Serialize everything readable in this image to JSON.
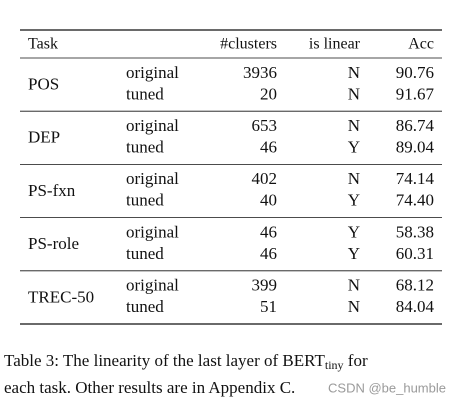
{
  "table": {
    "header": [
      "Task",
      "#clusters",
      "is linear",
      "Acc"
    ],
    "groups": [
      {
        "task": "POS",
        "rows": [
          [
            "original",
            "3936",
            "N",
            "90.76"
          ],
          [
            "tuned",
            "20",
            "N",
            "91.67"
          ]
        ]
      },
      {
        "task": "DEP",
        "rows": [
          [
            "original",
            "653",
            "N",
            "86.74"
          ],
          [
            "tuned",
            "46",
            "Y",
            "89.04"
          ]
        ]
      },
      {
        "task": "PS-fxn",
        "rows": [
          [
            "original",
            "402",
            "N",
            "74.14"
          ],
          [
            "tuned",
            "40",
            "Y",
            "74.40"
          ]
        ]
      },
      {
        "task": "PS-role",
        "rows": [
          [
            "original",
            "46",
            "Y",
            "58.38"
          ],
          [
            "tuned",
            "46",
            "Y",
            "60.31"
          ]
        ]
      },
      {
        "task": "TREC-50",
        "rows": [
          [
            "original",
            "399",
            "N",
            "68.12"
          ],
          [
            "tuned",
            "51",
            "N",
            "84.04"
          ]
        ]
      }
    ]
  },
  "caption": {
    "line1_start": "Table 3: The linearity of the last layer of BERT",
    "subscript": "tiny",
    "line1_end": " for",
    "line2": "each task. Other results are in Appendix C."
  },
  "watermark": "CSDN @be_humble"
}
